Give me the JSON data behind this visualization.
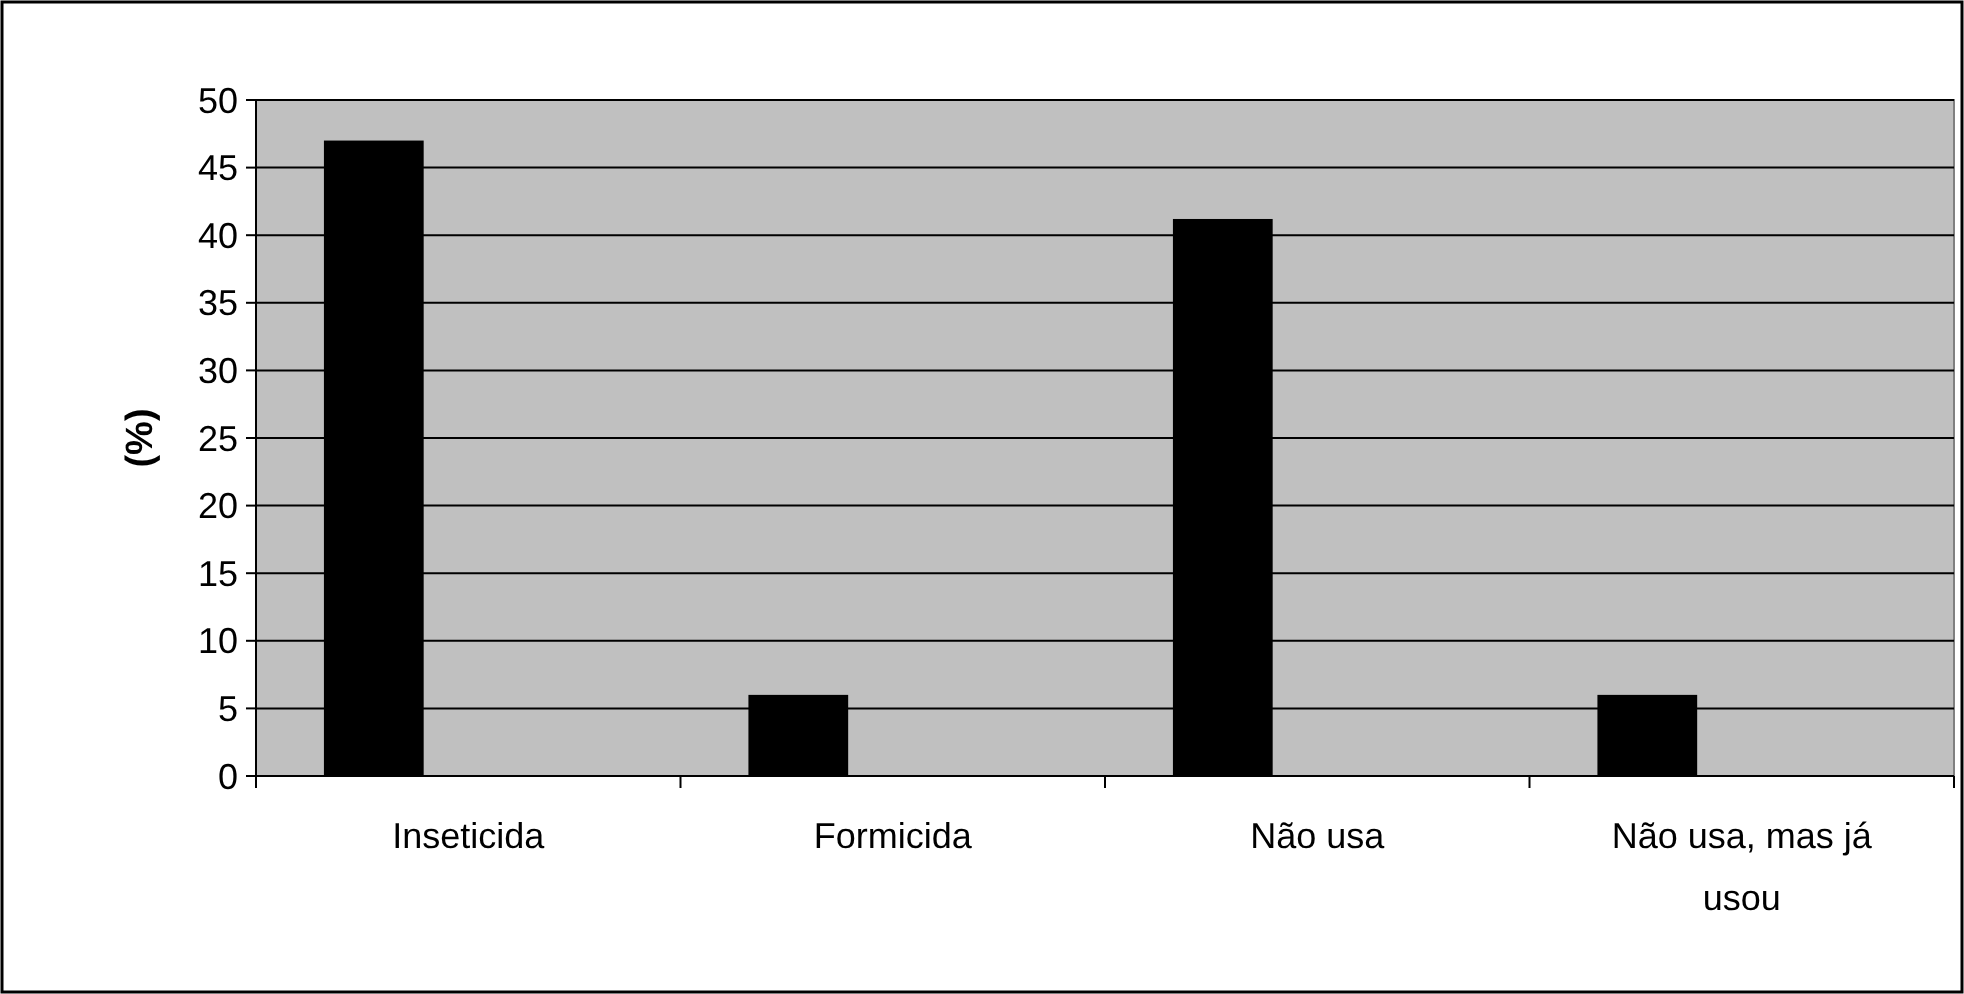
{
  "chart_data": {
    "type": "bar",
    "ylabel": "(%)",
    "categories": [
      "Inseticida",
      "Formicida",
      "Não usa",
      "Não usa, mas já usou"
    ],
    "values": [
      47,
      6,
      41.2,
      6
    ],
    "color": "#000000",
    "ylim": [
      0,
      50
    ],
    "yticks": [
      0,
      5,
      10,
      15,
      20,
      25,
      30,
      35,
      40,
      45,
      50
    ],
    "grid": "y"
  }
}
